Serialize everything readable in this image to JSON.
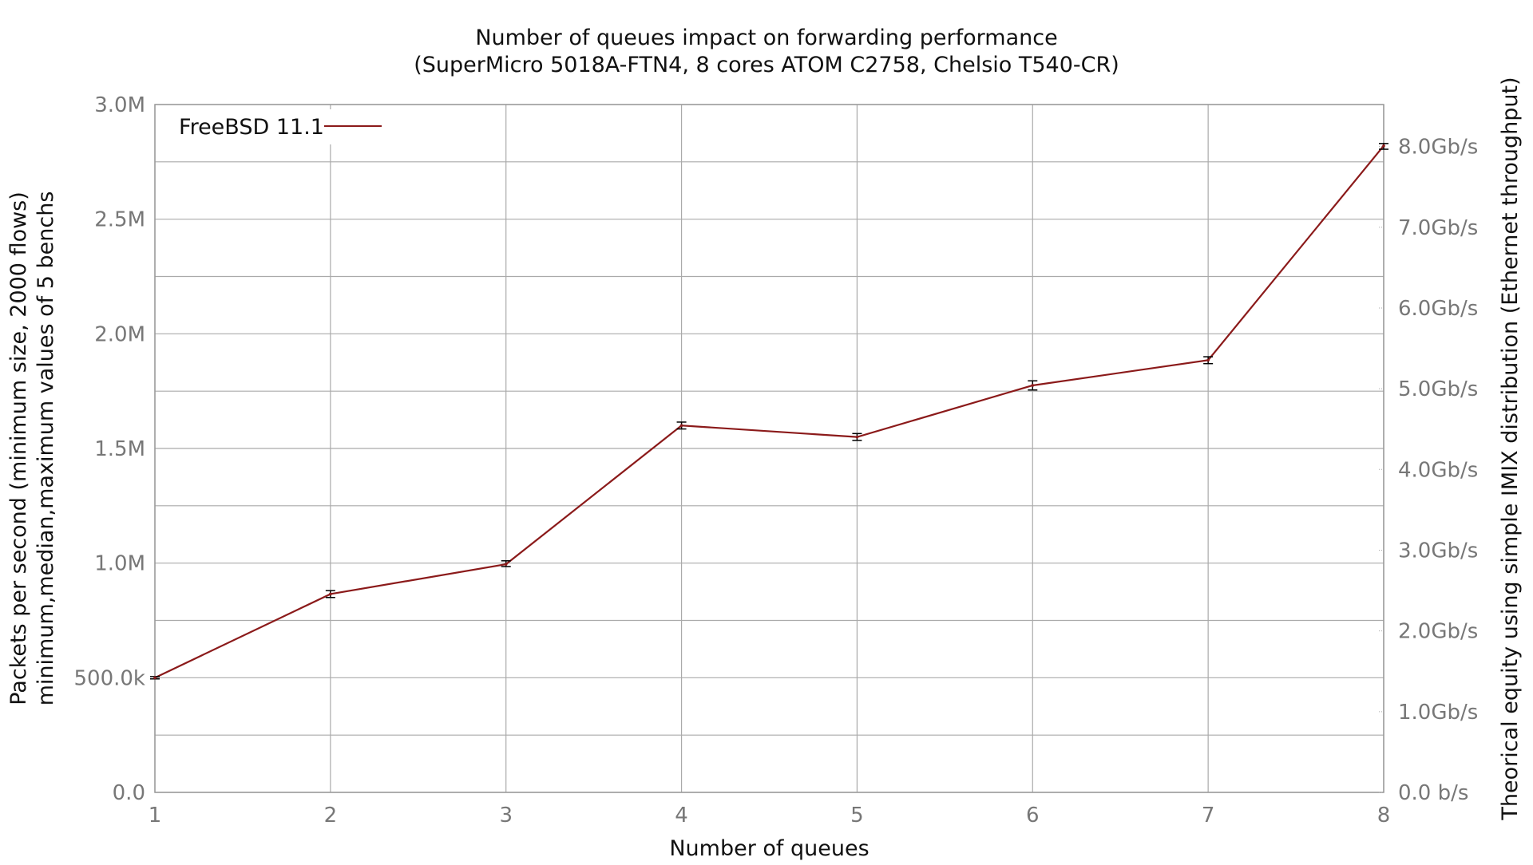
{
  "chart_data": {
    "type": "line",
    "title": "Number of queues impact on forwarding performance",
    "subtitle": "(SuperMicro 5018A-FTN4, 8 cores ATOM C2758, Chelsio T540-CR)",
    "xlabel": "Number of queues",
    "ylabel": "Packets per second (minimum size, 2000 flows)",
    "ylabel2": "minimum,median,maximum values of 5 benchs",
    "y2label": "Theorical equity using simple IMIX distribution (Ethernet throughput)",
    "x": [
      1,
      2,
      3,
      4,
      5,
      6,
      7,
      8
    ],
    "xlim": [
      1,
      8
    ],
    "ylim": [
      0,
      3000000
    ],
    "x_ticks": [
      "1",
      "2",
      "3",
      "4",
      "5",
      "6",
      "7",
      "8"
    ],
    "y_ticks": [
      {
        "value": 0,
        "label": "0.0"
      },
      {
        "value": 500000,
        "label": "500.0k"
      },
      {
        "value": 1000000,
        "label": "1.0M"
      },
      {
        "value": 1500000,
        "label": "1.5M"
      },
      {
        "value": 2000000,
        "label": "2.0M"
      },
      {
        "value": 2500000,
        "label": "2.5M"
      },
      {
        "value": 3000000,
        "label": "3.0M"
      }
    ],
    "y2_scale_bps_per_pps": 2840,
    "y2_ticks": [
      {
        "value": 0,
        "label": "0.0 b/s"
      },
      {
        "value": 1000000000,
        "label": "1.0Gb/s"
      },
      {
        "value": 2000000000,
        "label": "2.0Gb/s"
      },
      {
        "value": 3000000000,
        "label": "3.0Gb/s"
      },
      {
        "value": 4000000000,
        "label": "4.0Gb/s"
      },
      {
        "value": 5000000000,
        "label": "5.0Gb/s"
      },
      {
        "value": 6000000000,
        "label": "6.0Gb/s"
      },
      {
        "value": 7000000000,
        "label": "7.0Gb/s"
      },
      {
        "value": 8000000000,
        "label": "8.0Gb/s"
      }
    ],
    "grid": true,
    "legend_position": "top-left",
    "series": [
      {
        "name": "FreeBSD 11.1",
        "color": "#8b1a1a",
        "median": [
          500000,
          865000,
          995000,
          1600000,
          1550000,
          1775000,
          1885000,
          2820000
        ],
        "min": [
          495000,
          850000,
          985000,
          1585000,
          1535000,
          1755000,
          1870000,
          2805000
        ],
        "max": [
          505000,
          880000,
          1010000,
          1615000,
          1565000,
          1795000,
          1900000,
          2830000
        ]
      }
    ]
  }
}
